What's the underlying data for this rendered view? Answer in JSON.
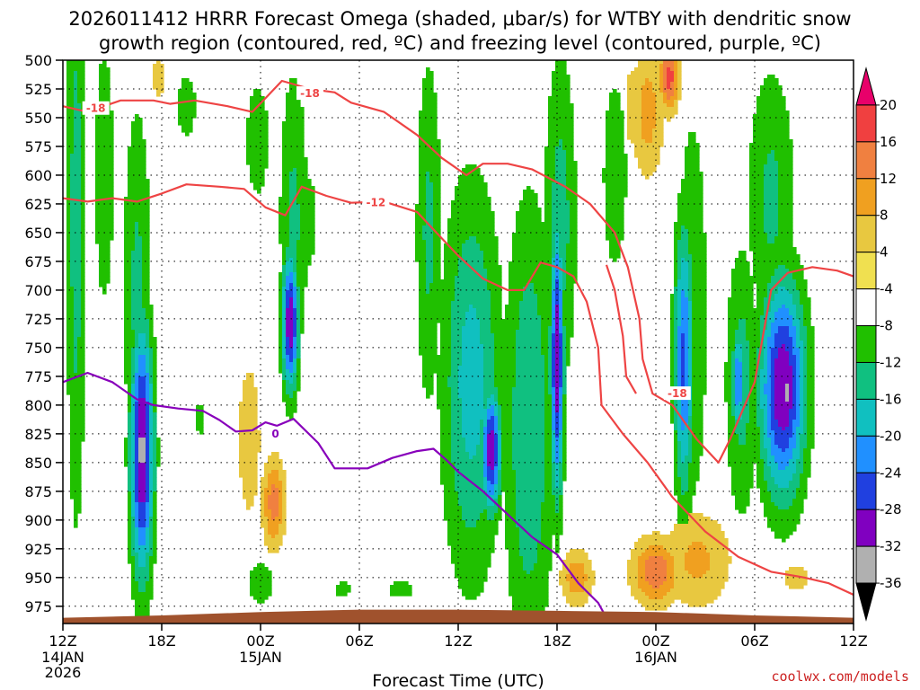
{
  "page": {
    "title_line1": "2026011412 HRRR Forecast Omega (shaded, μbar/s) for WTBY with dendritic snow",
    "title_line2": "growth region (contoured, red, ºC) and freezing level (contoured, purple, ºC)",
    "credit": "coolwx.com/models",
    "colors": {
      "credit": "#cc2222",
      "dgz_contour": "#ee4444",
      "freezing_contour": "#8800bb",
      "terrain": "#a0522d"
    }
  },
  "chart_data": {
    "type": "heatmap",
    "title": "2026011412 HRRR Forecast Omega (shaded, μbar/s) for WTBY with dendritic snow growth region (contoured, red, ºC) and freezing level (contoured, purple, ºC)",
    "xlabel": "Forecast Time (UTC)",
    "ylabel": "",
    "x_range_hours": [
      0,
      48
    ],
    "y_range_mb": [
      500,
      990
    ],
    "y_axis_inverted": true,
    "x_ticks": [
      {
        "hour": 0,
        "label": "12Z",
        "sub1": "14JAN",
        "sub2": "2026"
      },
      {
        "hour": 6,
        "label": "18Z",
        "sub1": "",
        "sub2": ""
      },
      {
        "hour": 12,
        "label": "00Z",
        "sub1": "15JAN",
        "sub2": ""
      },
      {
        "hour": 18,
        "label": "06Z",
        "sub1": "",
        "sub2": ""
      },
      {
        "hour": 24,
        "label": "12Z",
        "sub1": "",
        "sub2": ""
      },
      {
        "hour": 30,
        "label": "18Z",
        "sub1": "",
        "sub2": ""
      },
      {
        "hour": 36,
        "label": "00Z",
        "sub1": "16JAN",
        "sub2": ""
      },
      {
        "hour": 42,
        "label": "06Z",
        "sub1": "",
        "sub2": ""
      },
      {
        "hour": 48,
        "label": "12Z",
        "sub1": "",
        "sub2": ""
      }
    ],
    "y_ticks": [
      "500",
      "525",
      "550",
      "575",
      "600",
      "625",
      "650",
      "675",
      "700",
      "725",
      "750",
      "775",
      "800",
      "825",
      "850",
      "875",
      "900",
      "925",
      "950",
      "975"
    ],
    "colorbar": {
      "levels": [
        20,
        16,
        12,
        8,
        4,
        -4,
        -8,
        -12,
        -16,
        -20,
        -24,
        -28,
        -32,
        -36
      ],
      "labels": [
        "20",
        "16",
        "12",
        "8",
        "4",
        "-4",
        "-8",
        "-12",
        "-16",
        "-20",
        "-24",
        "-28",
        "-32",
        "-36"
      ],
      "colors": [
        "#e8006a",
        "#f04040",
        "#f08040",
        "#f0a020",
        "#e8c840",
        "#f0e050",
        "#ffffff",
        "#20c000",
        "#10c080",
        "#10c0c0",
        "#2090ff",
        "#2040e0",
        "#8000c0",
        "#b0b0b0",
        "#000000"
      ]
    },
    "omega_blobs": [
      {
        "h": 0.8,
        "p": 640,
        "sh": 0.6,
        "sp": 280,
        "v": -10
      },
      {
        "h": 2.5,
        "p": 600,
        "sh": 0.7,
        "sp": 140,
        "v": -7
      },
      {
        "h": 4.8,
        "p": 840,
        "sh": 0.7,
        "sp": 110,
        "v": -29
      },
      {
        "h": 4.5,
        "p": 700,
        "sh": 0.9,
        "sp": 170,
        "v": -9
      },
      {
        "h": 7.5,
        "p": 540,
        "sh": 0.8,
        "sp": 40,
        "v": -6
      },
      {
        "h": 5.8,
        "p": 515,
        "sh": 0.5,
        "sp": 25,
        "v": 6
      },
      {
        "h": 8.3,
        "p": 812,
        "sh": 0.3,
        "sp": 18,
        "v": -7
      },
      {
        "h": 11.8,
        "p": 570,
        "sh": 1.0,
        "sp": 70,
        "v": -6
      },
      {
        "h": 13.8,
        "p": 728,
        "sh": 0.5,
        "sp": 60,
        "v": -28
      },
      {
        "h": 14.0,
        "p": 640,
        "sh": 0.9,
        "sp": 140,
        "v": -9
      },
      {
        "h": 11.3,
        "p": 830,
        "sh": 0.8,
        "sp": 80,
        "v": 7
      },
      {
        "h": 12.8,
        "p": 885,
        "sh": 0.7,
        "sp": 40,
        "v": 14
      },
      {
        "h": 15.0,
        "p": 640,
        "sh": 0.4,
        "sp": 60,
        "v": -6
      },
      {
        "h": 12.0,
        "p": 955,
        "sh": 0.9,
        "sp": 20,
        "v": -8
      },
      {
        "h": 17.0,
        "p": 960,
        "sh": 0.7,
        "sp": 10,
        "v": -6
      },
      {
        "h": 20.5,
        "p": 960,
        "sh": 1.2,
        "sp": 10,
        "v": -6
      },
      {
        "h": 22.2,
        "p": 650,
        "sh": 0.8,
        "sp": 160,
        "v": -9
      },
      {
        "h": 24.8,
        "p": 780,
        "sh": 1.8,
        "sp": 170,
        "v": -14
      },
      {
        "h": 26.0,
        "p": 840,
        "sh": 0.6,
        "sp": 55,
        "v": -27
      },
      {
        "h": 28.3,
        "p": 820,
        "sh": 1.5,
        "sp": 200,
        "v": -12
      },
      {
        "h": 30.0,
        "p": 760,
        "sh": 0.4,
        "sp": 120,
        "v": -28
      },
      {
        "h": 30.2,
        "p": 640,
        "sh": 1.0,
        "sp": 150,
        "v": -10
      },
      {
        "h": 33.5,
        "p": 600,
        "sh": 0.8,
        "sp": 90,
        "v": -8
      },
      {
        "h": 35.5,
        "p": 545,
        "sh": 1.0,
        "sp": 60,
        "v": 10
      },
      {
        "h": 36.8,
        "p": 515,
        "sh": 0.6,
        "sp": 30,
        "v": 18
      },
      {
        "h": 34.5,
        "p": 540,
        "sh": 0.5,
        "sp": 50,
        "v": 6
      },
      {
        "h": 37.7,
        "p": 760,
        "sh": 0.6,
        "sp": 120,
        "v": -21
      },
      {
        "h": 38.2,
        "p": 720,
        "sh": 1.0,
        "sp": 190,
        "v": -8
      },
      {
        "h": 41.0,
        "p": 780,
        "sh": 0.4,
        "sp": 50,
        "v": -20
      },
      {
        "h": 41.2,
        "p": 780,
        "sh": 1.0,
        "sp": 120,
        "v": -10
      },
      {
        "h": 43.7,
        "p": 785,
        "sh": 1.4,
        "sp": 95,
        "v": -28
      },
      {
        "h": 44.0,
        "p": 790,
        "sh": 0.5,
        "sp": 20,
        "v": -32
      },
      {
        "h": 43.0,
        "p": 620,
        "sh": 1.5,
        "sp": 120,
        "v": -9
      },
      {
        "h": 46.5,
        "p": 550,
        "sh": 1.0,
        "sp": 50,
        "v": 4
      },
      {
        "h": 36.0,
        "p": 945,
        "sh": 1.5,
        "sp": 30,
        "v": 15
      },
      {
        "h": 38.5,
        "p": 935,
        "sh": 2.2,
        "sp": 45,
        "v": 9
      },
      {
        "h": 31.2,
        "p": 950,
        "sh": 1.0,
        "sp": 25,
        "v": 11
      },
      {
        "h": 44.5,
        "p": 950,
        "sh": 1.6,
        "sp": 20,
        "v": 5
      },
      {
        "h": 28.0,
        "p": 960,
        "sh": 1.5,
        "sp": 15,
        "v": 5
      }
    ],
    "contours": [
      {
        "name": "-18",
        "color": "#ee4444",
        "label_at": [
          {
            "h": 2.0,
            "p": 542
          },
          {
            "h": 15.0,
            "p": 529
          },
          {
            "h": 37.3,
            "p": 790
          }
        ],
        "points": [
          [
            0,
            540
          ],
          [
            1.5,
            545
          ],
          [
            3.5,
            535
          ],
          [
            5.5,
            535
          ],
          [
            6.5,
            538
          ],
          [
            8,
            535
          ],
          [
            10,
            540
          ],
          [
            11.5,
            545
          ],
          [
            12.5,
            530
          ],
          [
            13.3,
            518
          ],
          [
            15,
            525
          ],
          [
            16.5,
            528
          ],
          [
            17.5,
            537
          ],
          [
            19.5,
            545
          ],
          [
            21.5,
            565
          ],
          [
            23.0,
            585
          ],
          [
            24.5,
            600
          ],
          [
            25.5,
            590
          ],
          [
            27,
            590
          ],
          [
            28.5,
            595
          ],
          [
            30.5,
            610
          ],
          [
            32,
            625
          ],
          [
            33.5,
            650
          ],
          [
            34.3,
            680
          ],
          [
            35.0,
            725
          ],
          [
            35.2,
            760
          ],
          [
            35.8,
            790
          ],
          [
            37,
            800
          ],
          [
            38.5,
            830
          ],
          [
            39.8,
            850
          ],
          [
            40.5,
            830
          ],
          [
            42,
            780
          ],
          [
            43,
            700
          ],
          [
            44,
            685
          ],
          [
            45.5,
            680
          ],
          [
            47,
            683
          ],
          [
            48,
            688
          ]
        ]
      },
      {
        "name": "-12",
        "color": "#ee4444",
        "label_at": [
          {
            "h": 19.0,
            "p": 624
          }
        ],
        "points": [
          [
            0,
            620
          ],
          [
            1.5,
            623
          ],
          [
            3,
            620
          ],
          [
            4.5,
            623
          ],
          [
            6,
            616
          ],
          [
            7.5,
            608
          ],
          [
            9.5,
            610
          ],
          [
            11,
            612
          ],
          [
            12.3,
            628
          ],
          [
            13.5,
            635
          ],
          [
            14.5,
            610
          ],
          [
            16,
            618
          ],
          [
            17.5,
            624
          ],
          [
            19.5,
            623
          ],
          [
            21.5,
            632
          ],
          [
            23,
            655
          ],
          [
            24,
            670
          ],
          [
            25.5,
            690
          ],
          [
            27,
            700
          ],
          [
            28,
            700
          ],
          [
            29,
            676
          ],
          [
            30,
            680
          ],
          [
            31,
            688
          ],
          [
            31.8,
            710
          ],
          [
            32.5,
            750
          ],
          [
            32.7,
            800
          ],
          [
            34,
            825
          ],
          [
            35.5,
            850
          ],
          [
            37,
            880
          ],
          [
            39,
            910
          ],
          [
            41,
            932
          ],
          [
            43,
            945
          ],
          [
            45,
            950
          ],
          [
            46.5,
            955
          ],
          [
            48,
            965
          ]
        ]
      },
      {
        "name": "-18",
        "color": "#ee4444",
        "label_at": [],
        "points": [
          [
            33.0,
            678
          ],
          [
            33.5,
            700
          ],
          [
            34.0,
            740
          ],
          [
            34.2,
            775
          ],
          [
            34.8,
            790
          ]
        ]
      },
      {
        "name": "0",
        "color": "#8800bb",
        "label_at": [
          {
            "h": 12.9,
            "p": 825
          }
        ],
        "points": [
          [
            0,
            780
          ],
          [
            1.5,
            772
          ],
          [
            3,
            780
          ],
          [
            4.5,
            795
          ],
          [
            5.5,
            800
          ],
          [
            7,
            803
          ],
          [
            8.5,
            805
          ],
          [
            9.5,
            813
          ],
          [
            10.5,
            823
          ],
          [
            11.5,
            822
          ],
          [
            12.3,
            815
          ],
          [
            13.0,
            818
          ],
          [
            14,
            812
          ],
          [
            15.5,
            833
          ],
          [
            16.5,
            855
          ],
          [
            18.5,
            855
          ],
          [
            20,
            846
          ],
          [
            21.5,
            840
          ],
          [
            22.5,
            838
          ],
          [
            23.3,
            848
          ],
          [
            24,
            858
          ],
          [
            25.5,
            875
          ],
          [
            27,
            895
          ],
          [
            28.5,
            915
          ],
          [
            30,
            930
          ],
          [
            31.3,
            955
          ],
          [
            32.5,
            972
          ],
          [
            33.0,
            985
          ]
        ]
      }
    ],
    "terrain_top_mb": [
      [
        0,
        985
      ],
      [
        6,
        983
      ],
      [
        12,
        980
      ],
      [
        18,
        978
      ],
      [
        24,
        978
      ],
      [
        30,
        979
      ],
      [
        36,
        980
      ],
      [
        42,
        983
      ],
      [
        48,
        985
      ]
    ]
  }
}
